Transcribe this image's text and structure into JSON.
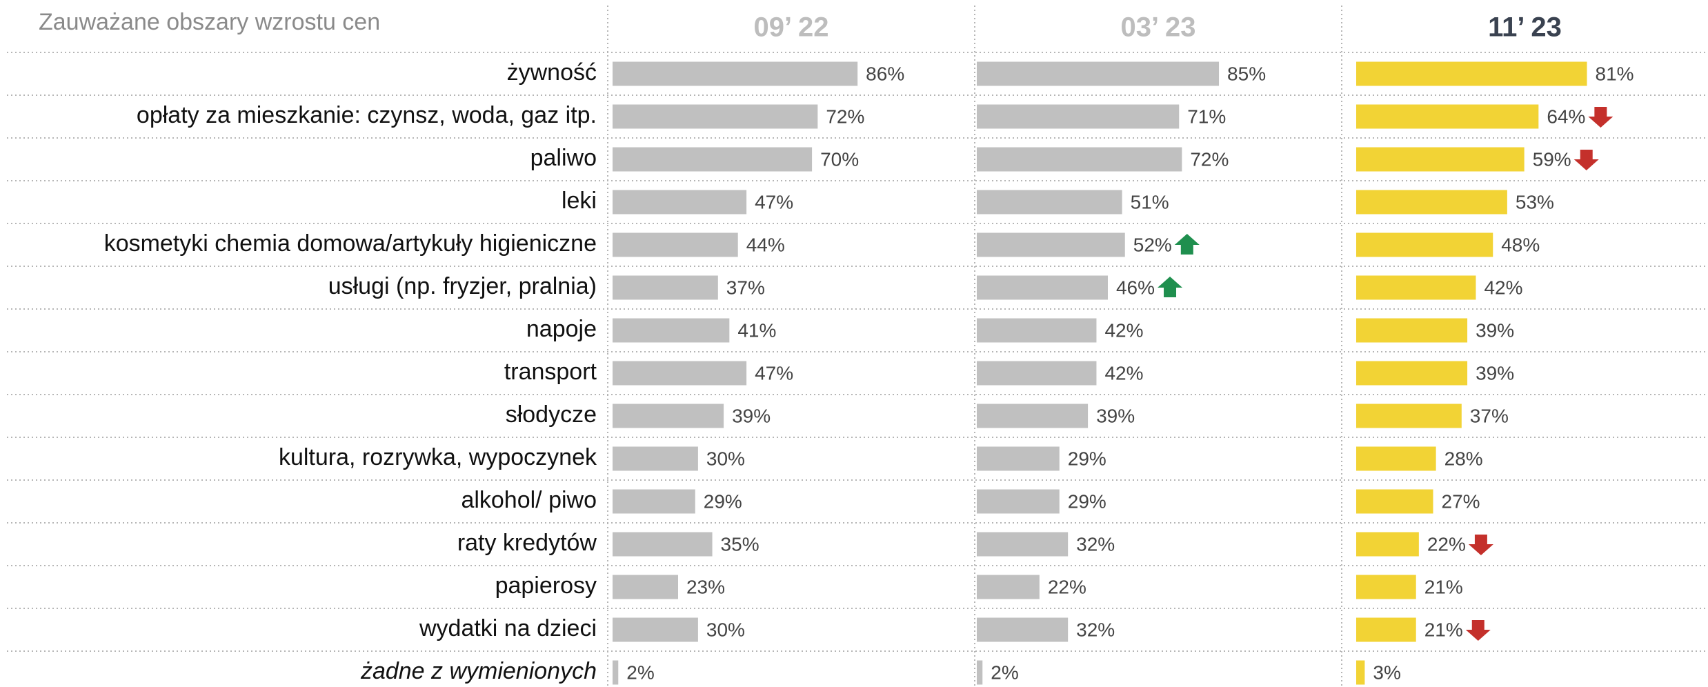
{
  "chart_data": {
    "type": "bar",
    "orientation": "horizontal",
    "title": "Zauważane obszary wzrostu cen",
    "categories": [
      "żywność",
      "opłaty za mieszkanie: czynsz, woda, gaz itp.",
      "paliwo",
      "leki",
      "kosmetyki chemia domowa/artykuły higieniczne",
      "usługi (np. fryzjer, pralnia)",
      "napoje",
      "transport",
      "słodycze",
      "kultura, rozrywka, wypoczynek",
      "alkohol/ piwo",
      "raty kredytów",
      "papierosy",
      "wydatki na dzieci",
      "żadne z wymienionych"
    ],
    "xlim": [
      0,
      100
    ],
    "series": [
      {
        "name": "09’ 22",
        "color": "#c0c0c0",
        "values": [
          86,
          72,
          70,
          47,
          44,
          37,
          41,
          47,
          39,
          30,
          29,
          35,
          23,
          30,
          2
        ],
        "value_labels": [
          "86%",
          "72%",
          "70%",
          "47%",
          "44%",
          "37%",
          "41%",
          "47%",
          "39%",
          "30%",
          "29%",
          "35%",
          "23%",
          "30%",
          "2%"
        ],
        "trend": [
          null,
          null,
          null,
          null,
          null,
          null,
          null,
          null,
          null,
          null,
          null,
          null,
          null,
          null,
          null
        ]
      },
      {
        "name": "03’ 23",
        "color": "#c0c0c0",
        "values": [
          85,
          71,
          72,
          51,
          52,
          46,
          42,
          42,
          39,
          29,
          29,
          32,
          22,
          32,
          2
        ],
        "value_labels": [
          "85%",
          "71%",
          "72%",
          "51%",
          "52%",
          "46%",
          "42%",
          "42%",
          "39%",
          "29%",
          "29%",
          "32%",
          "22%",
          "32%",
          "2%"
        ],
        "trend": [
          null,
          null,
          null,
          null,
          "up",
          "up",
          null,
          null,
          null,
          null,
          null,
          null,
          null,
          null,
          null
        ]
      },
      {
        "name": "11’ 23",
        "color": "#f2d335",
        "values": [
          81,
          64,
          59,
          53,
          48,
          42,
          39,
          39,
          37,
          28,
          27,
          22,
          21,
          21,
          3
        ],
        "value_labels": [
          "81%",
          "64%",
          "59%",
          "53%",
          "48%",
          "42%",
          "39%",
          "39%",
          "37%",
          "28%",
          "27%",
          "22%",
          "21%",
          "21%",
          "3%"
        ],
        "trend": [
          null,
          "down",
          "down",
          null,
          null,
          null,
          null,
          null,
          null,
          null,
          null,
          "down",
          null,
          "down",
          null
        ]
      }
    ]
  }
}
